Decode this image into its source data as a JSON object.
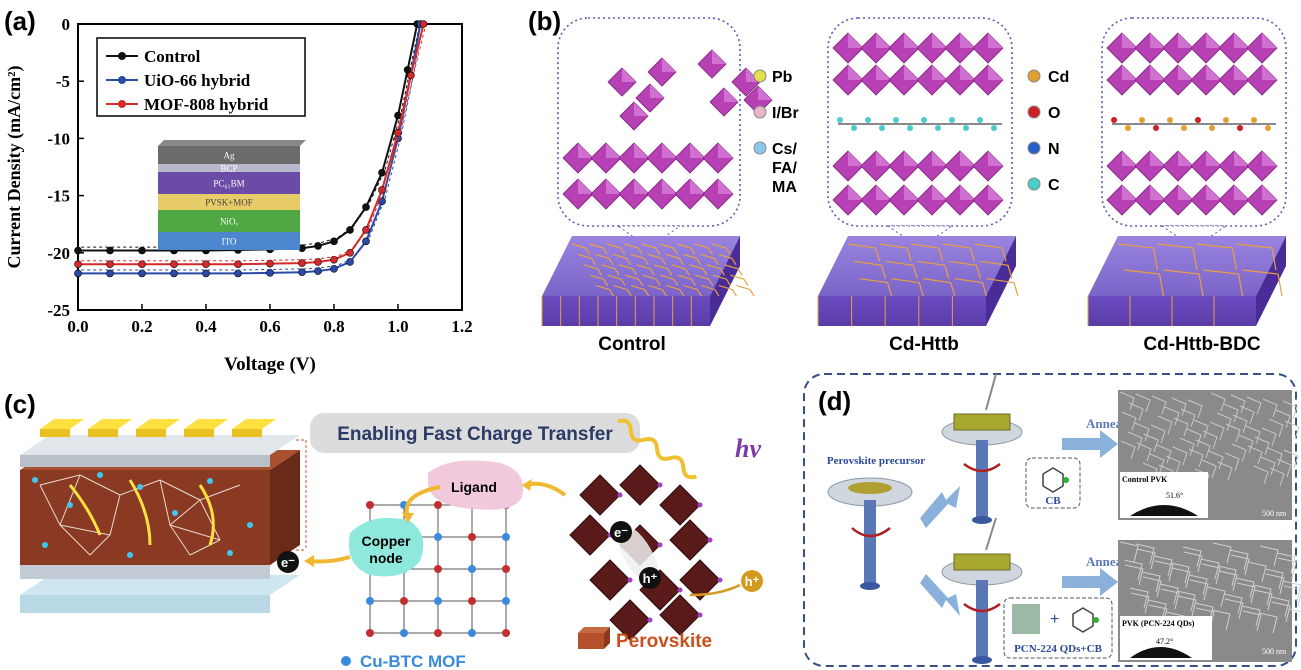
{
  "panels": {
    "a": {
      "label": "(a)",
      "chart_data": {
        "type": "line",
        "xlabel": "Voltage (V)",
        "ylabel": "Current Density (mA/cm²)",
        "xlim": [
          0.0,
          1.2
        ],
        "ylim": [
          -25,
          0
        ],
        "xticks": [
          "0.0",
          "0.2",
          "0.4",
          "0.6",
          "0.8",
          "1.0",
          "1.2"
        ],
        "yticks": [
          "0",
          "-5",
          "-10",
          "-15",
          "-20",
          "-25"
        ],
        "legend_position": "top-left",
        "series": [
          {
            "name": "Control",
            "color": "#111111",
            "x": [
              0.0,
              0.1,
              0.2,
              0.3,
              0.4,
              0.5,
              0.6,
              0.7,
              0.75,
              0.8,
              0.85,
              0.9,
              0.95,
              1.0,
              1.03,
              1.06
            ],
            "y": [
              -19.8,
              -19.8,
              -19.8,
              -19.8,
              -19.8,
              -19.75,
              -19.7,
              -19.6,
              -19.4,
              -19.0,
              -18.0,
              -16.0,
              -13.0,
              -8.0,
              -4.0,
              0.0
            ]
          },
          {
            "name": "UiO-66 hybrid",
            "color": "#2b4aa8",
            "x": [
              0.0,
              0.1,
              0.2,
              0.3,
              0.4,
              0.5,
              0.6,
              0.7,
              0.75,
              0.8,
              0.85,
              0.9,
              0.95,
              1.0,
              1.04,
              1.07
            ],
            "y": [
              -21.8,
              -21.8,
              -21.8,
              -21.8,
              -21.8,
              -21.8,
              -21.75,
              -21.7,
              -21.6,
              -21.4,
              -20.8,
              -19.0,
              -15.5,
              -10.0,
              -4.5,
              0.0
            ]
          },
          {
            "name": "MOF-808 hybrid",
            "color": "#d42a2a",
            "x": [
              0.0,
              0.1,
              0.2,
              0.3,
              0.4,
              0.5,
              0.6,
              0.7,
              0.75,
              0.8,
              0.85,
              0.9,
              0.95,
              1.0,
              1.04,
              1.08
            ],
            "y": [
              -21.0,
              -21.0,
              -21.0,
              -21.0,
              -21.0,
              -21.0,
              -20.95,
              -20.9,
              -20.8,
              -20.6,
              -20.0,
              -18.0,
              -14.5,
              -9.5,
              -4.5,
              0.0
            ]
          }
        ]
      },
      "inset_layers": [
        "Ag",
        "BCP",
        "PC₆₁BM",
        "PVSK+MOF",
        "NiOₓ",
        "ITO"
      ],
      "inset_colors": [
        "#6b6b6b",
        "#b8b8cc",
        "#6a4ba8",
        "#e8cc6a",
        "#4fa844",
        "#4c86cc"
      ]
    },
    "b": {
      "label": "(b)",
      "legend_left": [
        "Pb",
        "I/Br",
        "Cs/\nFA/\nMA"
      ],
      "legend_left_colors": [
        "#e6e04a",
        "#e8b4cc",
        "#8cc8ee"
      ],
      "legend_right": [
        "Cd",
        "O",
        "N",
        "C"
      ],
      "legend_right_colors": [
        "#e0a030",
        "#cc2020",
        "#2a5ec8",
        "#4acccc"
      ],
      "captions": [
        "Control",
        "Cd-Httb",
        "Cd-Httb-BDC"
      ]
    },
    "c": {
      "label": "(c)",
      "banner": "Enabling Fast Charge Transfer",
      "ligand": "Ligand",
      "copper_node": "Copper\nnode",
      "hv": "hv",
      "electron": "e⁻",
      "hole": "h⁺",
      "perovskite": "Perovskite",
      "mof": "Cu-BTC MOF"
    },
    "d": {
      "label": "(d)",
      "precursor": "Perovskite precursor",
      "annealing": "Annealing",
      "cb": "CB",
      "pcn_cb": "PCN-224 QDs+CB",
      "sem_top_label": "Control PVK",
      "sem_top_angle": "51.6°",
      "sem_bottom_label": "PVK (PCN-224 QDs)",
      "sem_bottom_angle": "47.2°",
      "scale": "500 nm"
    }
  }
}
